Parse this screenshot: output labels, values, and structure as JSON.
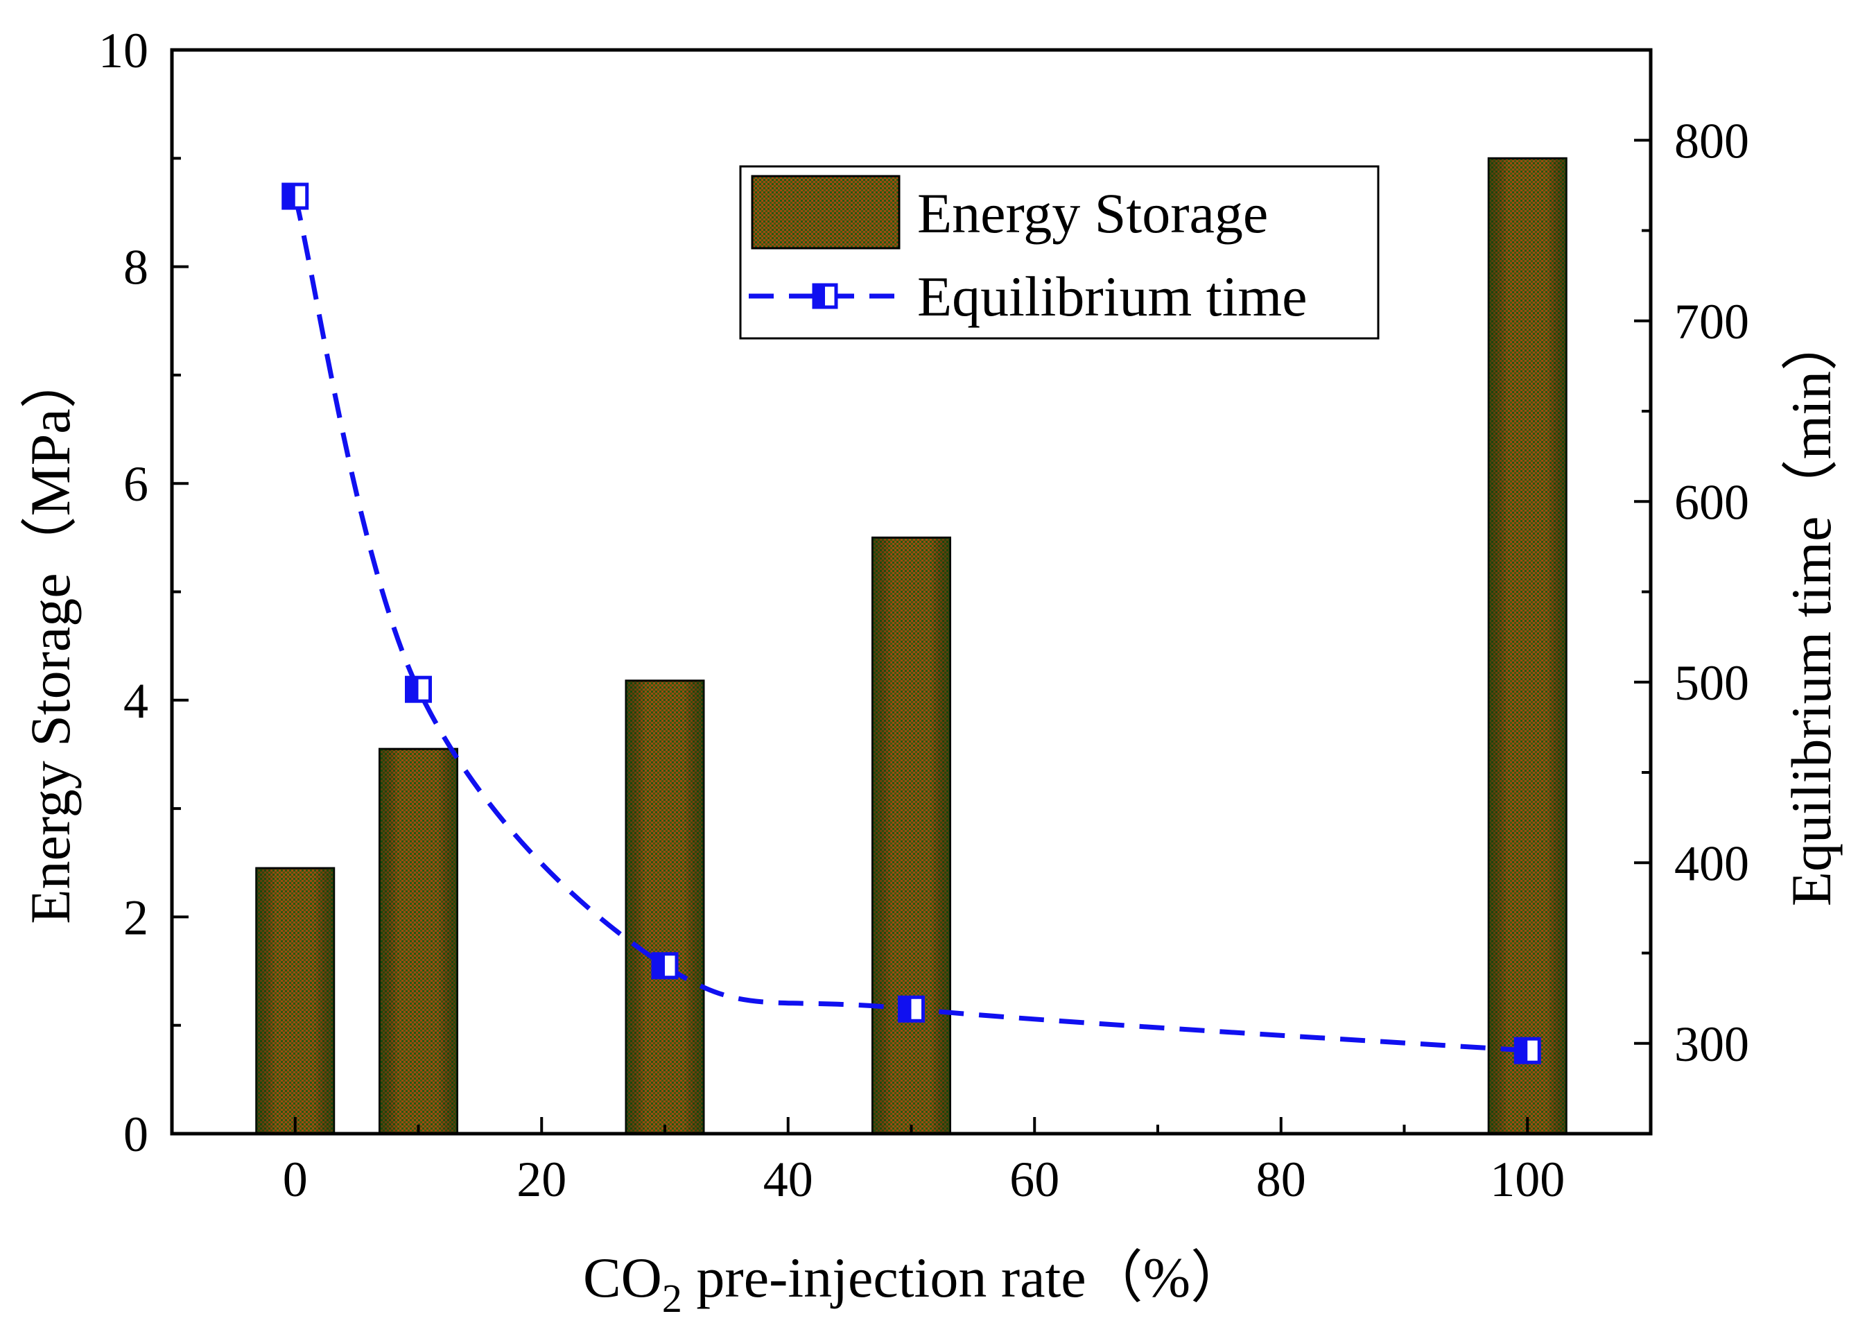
{
  "chart_data": {
    "type": "bar+line",
    "x_axis": {
      "label_prefix": "CO",
      "label_subscript": "2",
      "label_suffix": " pre-injection rate（%）",
      "range": [
        -10,
        110
      ],
      "ticks": [
        0,
        20,
        40,
        60,
        80,
        100
      ],
      "minor_ticks": [
        10,
        30,
        50,
        70,
        90
      ]
    },
    "y_left": {
      "label": "Energy Storage（MPa）",
      "range": [
        0,
        10
      ],
      "ticks": [
        0,
        2,
        4,
        6,
        8,
        10
      ]
    },
    "y_right": {
      "label": "Equilibrium time（min）",
      "range": [
        250,
        850
      ],
      "ticks": [
        300,
        400,
        500,
        600,
        700,
        800
      ]
    },
    "series": [
      {
        "name": "Energy Storage",
        "kind": "bar",
        "axis": "left",
        "x": [
          0,
          10,
          30,
          50,
          100
        ],
        "values": [
          2.45,
          3.55,
          4.18,
          5.5,
          9.0
        ],
        "bar_width_units": 6.3,
        "colors": [
          "#8a4410",
          "#1d5a10"
        ]
      },
      {
        "name": "Equilibrium time",
        "kind": "line",
        "axis": "right",
        "x": [
          0,
          10,
          30,
          50,
          100
        ],
        "values": [
          769,
          496,
          343,
          319,
          296
        ],
        "line_style": "dashed",
        "color": "#1010f0",
        "marker": "half-filled-square"
      }
    ],
    "legend": {
      "position": "top-right",
      "entries": [
        "Energy Storage",
        "Equilibrium time"
      ]
    }
  }
}
